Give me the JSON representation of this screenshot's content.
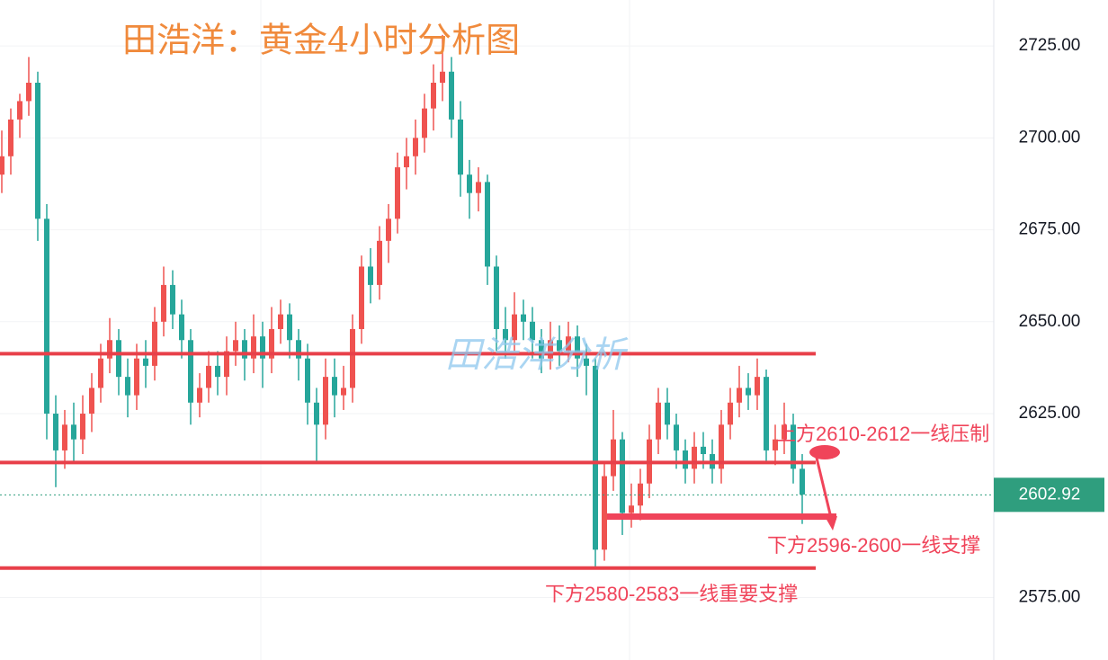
{
  "chart_data": {
    "type": "candlestick",
    "title": "田浩洋：黄金4小时分析图",
    "watermark": "田浩洋分析",
    "up_color": "#ef5350",
    "down_color": "#26a69a",
    "ylim": [
      2558,
      2737.5
    ],
    "yticks": [
      {
        "value": 2575,
        "label": "2575.00"
      },
      {
        "value": 2625,
        "label": "2625.00"
      },
      {
        "value": 2650,
        "label": "2650.00"
      },
      {
        "value": 2675,
        "label": "2675.00"
      },
      {
        "value": 2700,
        "label": "2700.00"
      },
      {
        "value": 2725,
        "label": "2725.00"
      }
    ],
    "grid": true,
    "current_price": 2602.92,
    "levels": [
      2641.3,
      2611.7,
      2583
    ],
    "support_zone": 2597,
    "annotations": [
      "上方2610-2612一线压制",
      "下方2596-2600一线支撑",
      "下方2580-2583一线重要支撑"
    ],
    "ohlc": [
      [
        2690,
        2702,
        2685,
        2695
      ],
      [
        2695,
        2708,
        2690,
        2705
      ],
      [
        2705,
        2712,
        2700,
        2710
      ],
      [
        2710,
        2722,
        2706,
        2715
      ],
      [
        2715,
        2718,
        2672,
        2678
      ],
      [
        2678,
        2682,
        2618,
        2625
      ],
      [
        2625,
        2630,
        2605,
        2615
      ],
      [
        2615,
        2626,
        2610,
        2622
      ],
      [
        2622,
        2628,
        2612,
        2618
      ],
      [
        2618,
        2630,
        2614,
        2625
      ],
      [
        2625,
        2636,
        2620,
        2632
      ],
      [
        2632,
        2644,
        2628,
        2640
      ],
      [
        2640,
        2651,
        2636,
        2645
      ],
      [
        2645,
        2648,
        2630,
        2635
      ],
      [
        2635,
        2640,
        2624,
        2630
      ],
      [
        2630,
        2644,
        2626,
        2640
      ],
      [
        2640,
        2645,
        2632,
        2638
      ],
      [
        2638,
        2654,
        2634,
        2650
      ],
      [
        2650,
        2665,
        2646,
        2660
      ],
      [
        2660,
        2664,
        2648,
        2652
      ],
      [
        2652,
        2656,
        2640,
        2645
      ],
      [
        2645,
        2648,
        2622,
        2628
      ],
      [
        2628,
        2636,
        2624,
        2632
      ],
      [
        2632,
        2642,
        2628,
        2638
      ],
      [
        2638,
        2642,
        2630,
        2635
      ],
      [
        2635,
        2646,
        2630,
        2642
      ],
      [
        2642,
        2650,
        2638,
        2645
      ],
      [
        2645,
        2648,
        2634,
        2640
      ],
      [
        2640,
        2652,
        2636,
        2646
      ],
      [
        2646,
        2650,
        2632,
        2640
      ],
      [
        2640,
        2654,
        2636,
        2648
      ],
      [
        2648,
        2656,
        2644,
        2652
      ],
      [
        2652,
        2655,
        2640,
        2645
      ],
      [
        2645,
        2648,
        2634,
        2640
      ],
      [
        2640,
        2644,
        2622,
        2628
      ],
      [
        2628,
        2632,
        2612,
        2622
      ],
      [
        2622,
        2640,
        2618,
        2635
      ],
      [
        2635,
        2640,
        2624,
        2630
      ],
      [
        2630,
        2638,
        2626,
        2632
      ],
      [
        2632,
        2652,
        2628,
        2648
      ],
      [
        2648,
        2668,
        2644,
        2665
      ],
      [
        2665,
        2670,
        2655,
        2660
      ],
      [
        2660,
        2676,
        2656,
        2672
      ],
      [
        2672,
        2682,
        2666,
        2678
      ],
      [
        2678,
        2696,
        2674,
        2692
      ],
      [
        2692,
        2700,
        2686,
        2695
      ],
      [
        2695,
        2705,
        2690,
        2700
      ],
      [
        2700,
        2712,
        2696,
        2708
      ],
      [
        2708,
        2720,
        2702,
        2715
      ],
      [
        2715,
        2728,
        2710,
        2718
      ],
      [
        2718,
        2722,
        2700,
        2705
      ],
      [
        2705,
        2710,
        2684,
        2690
      ],
      [
        2690,
        2694,
        2678,
        2685
      ],
      [
        2685,
        2692,
        2680,
        2688
      ],
      [
        2688,
        2690,
        2660,
        2665
      ],
      [
        2665,
        2668,
        2642,
        2648
      ],
      [
        2648,
        2654,
        2640,
        2645
      ],
      [
        2645,
        2658,
        2642,
        2652
      ],
      [
        2652,
        2656,
        2645,
        2650
      ],
      [
        2650,
        2654,
        2640,
        2645
      ],
      [
        2645,
        2648,
        2636,
        2640
      ],
      [
        2640,
        2650,
        2637,
        2645
      ],
      [
        2645,
        2649,
        2638,
        2642
      ],
      [
        2642,
        2650,
        2639,
        2646
      ],
      [
        2646,
        2649,
        2635,
        2640
      ],
      [
        2640,
        2644,
        2630,
        2638
      ],
      [
        2638,
        2640,
        2583,
        2588
      ],
      [
        2588,
        2612,
        2585,
        2608
      ],
      [
        2608,
        2626,
        2604,
        2618
      ],
      [
        2618,
        2620,
        2592,
        2598
      ],
      [
        2598,
        2606,
        2594,
        2600
      ],
      [
        2600,
        2610,
        2596,
        2606
      ],
      [
        2606,
        2622,
        2602,
        2618
      ],
      [
        2618,
        2632,
        2614,
        2628
      ],
      [
        2628,
        2632,
        2618,
        2622
      ],
      [
        2622,
        2625,
        2610,
        2615
      ],
      [
        2615,
        2618,
        2606,
        2610
      ],
      [
        2610,
        2620,
        2606,
        2616
      ],
      [
        2616,
        2620,
        2610,
        2614
      ],
      [
        2614,
        2618,
        2606,
        2610
      ],
      [
        2610,
        2626,
        2606,
        2622
      ],
      [
        2622,
        2632,
        2618,
        2628
      ],
      [
        2628,
        2638,
        2624,
        2632
      ],
      [
        2632,
        2636,
        2626,
        2630
      ],
      [
        2630,
        2640,
        2626,
        2635
      ],
      [
        2635,
        2637,
        2612,
        2615
      ],
      [
        2615,
        2622,
        2611,
        2618
      ],
      [
        2618,
        2628,
        2614,
        2622
      ],
      [
        2622,
        2625,
        2606,
        2610
      ],
      [
        2610,
        2614,
        2595,
        2603
      ]
    ]
  }
}
